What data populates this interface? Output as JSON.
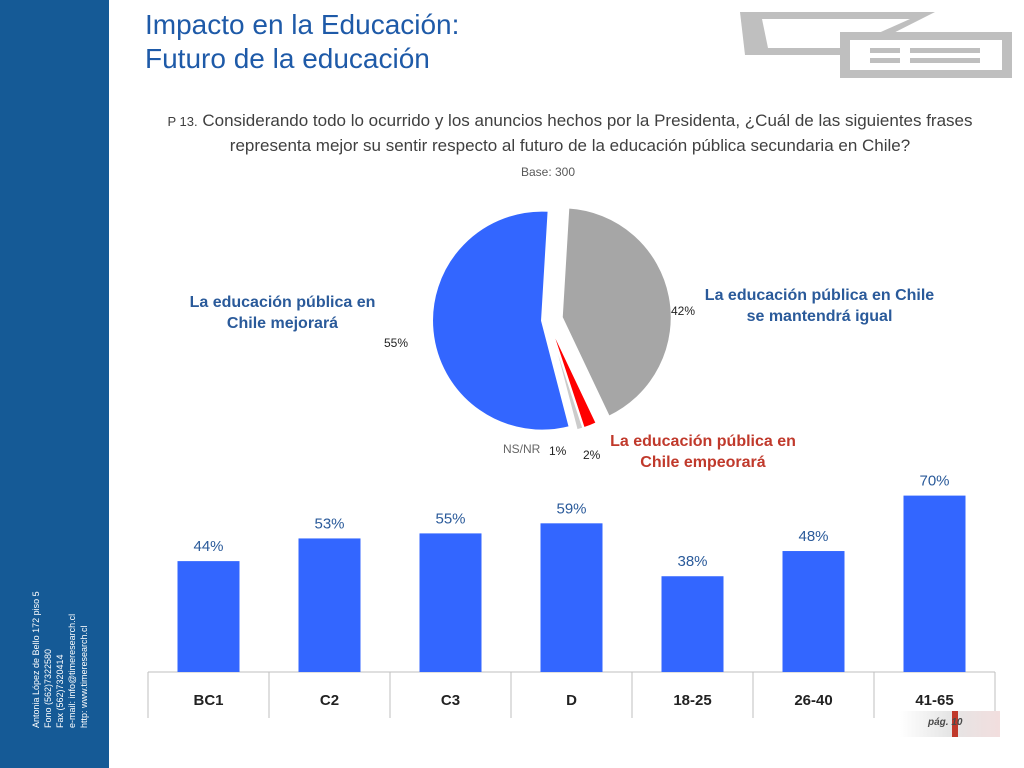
{
  "header": {
    "title_line1": "Impacto en la Educación:",
    "title_line2": "Futuro de la educación"
  },
  "question": {
    "number": "P 13.",
    "text": "Considerando todo lo ocurrido y los anuncios hechos por la Presidenta, ¿Cuál de las siguientes frases representa mejor su sentir respecto al futuro de la educación pública secundaria en Chile?",
    "base": "Base: 300"
  },
  "contact": {
    "line1": "Antonia López de Bello 172 piso 5",
    "line2": "Fono (562)7322580",
    "line3": "Fax (562)7320414",
    "line4": "e-mail: info@timeresearch.cl",
    "line5": "http: www.timeresearch.cl"
  },
  "footer": {
    "page": "pág. 10"
  },
  "colors": {
    "blue": "#3366ff",
    "gray": "#a6a6a6",
    "red": "#ff0000",
    "lightgray": "#cccccc",
    "sidebar": "#155a96"
  },
  "chart_data": [
    {
      "type": "pie",
      "slices": [
        {
          "label": "La educación pública en Chile mejorará",
          "value": 55,
          "display": "55%"
        },
        {
          "label": "La educación pública en Chile se mantendrá igual",
          "value": 42,
          "display": "42%"
        },
        {
          "label": "La educación pública en Chile empeorará",
          "value": 2,
          "display": "2%"
        },
        {
          "label": "NS/NR",
          "value": 1,
          "display": "1%"
        }
      ]
    },
    {
      "type": "bar",
      "categories": [
        "BC1",
        "C2",
        "C3",
        "D",
        "18-25",
        "26-40",
        "41-65"
      ],
      "values": [
        44,
        53,
        55,
        59,
        38,
        48,
        70
      ],
      "labels": [
        "44%",
        "53%",
        "55%",
        "59%",
        "38%",
        "48%",
        "70%"
      ],
      "ylim": [
        0,
        100
      ]
    }
  ]
}
